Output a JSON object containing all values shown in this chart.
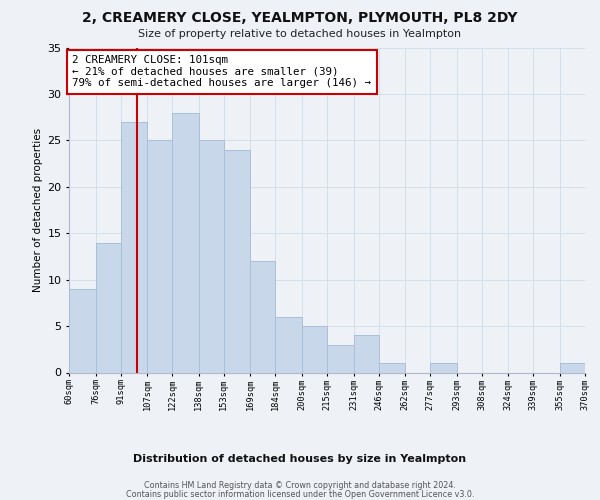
{
  "title": "2, CREAMERY CLOSE, YEALMPTON, PLYMOUTH, PL8 2DY",
  "subtitle": "Size of property relative to detached houses in Yealmpton",
  "xlabel": "Distribution of detached houses by size in Yealmpton",
  "ylabel": "Number of detached properties",
  "bar_color": "#c8d8ea",
  "bar_edge_color": "#a8c0d8",
  "bin_edges": [
    60,
    76,
    91,
    107,
    122,
    138,
    153,
    169,
    184,
    200,
    215,
    231,
    246,
    262,
    277,
    293,
    308,
    324,
    339,
    355,
    370
  ],
  "bin_labels": [
    "60sqm",
    "76sqm",
    "91sqm",
    "107sqm",
    "122sqm",
    "138sqm",
    "153sqm",
    "169sqm",
    "184sqm",
    "200sqm",
    "215sqm",
    "231sqm",
    "246sqm",
    "262sqm",
    "277sqm",
    "293sqm",
    "308sqm",
    "324sqm",
    "339sqm",
    "355sqm",
    "370sqm"
  ],
  "counts": [
    9,
    14,
    27,
    25,
    28,
    25,
    24,
    12,
    6,
    5,
    3,
    4,
    1,
    0,
    1,
    0,
    0,
    0,
    0,
    1
  ],
  "ylim": [
    0,
    35
  ],
  "yticks": [
    0,
    5,
    10,
    15,
    20,
    25,
    30,
    35
  ],
  "property_line_x": 101,
  "property_line_color": "#cc0000",
  "annotation_text": "2 CREAMERY CLOSE: 101sqm\n← 21% of detached houses are smaller (39)\n79% of semi-detached houses are larger (146) →",
  "annotation_box_facecolor": "#ffffff",
  "annotation_box_edgecolor": "#cc0000",
  "grid_color": "#d0dce8",
  "background_color": "#eef2f7",
  "footer_line1": "Contains HM Land Registry data © Crown copyright and database right 2024.",
  "footer_line2": "Contains public sector information licensed under the Open Government Licence v3.0."
}
